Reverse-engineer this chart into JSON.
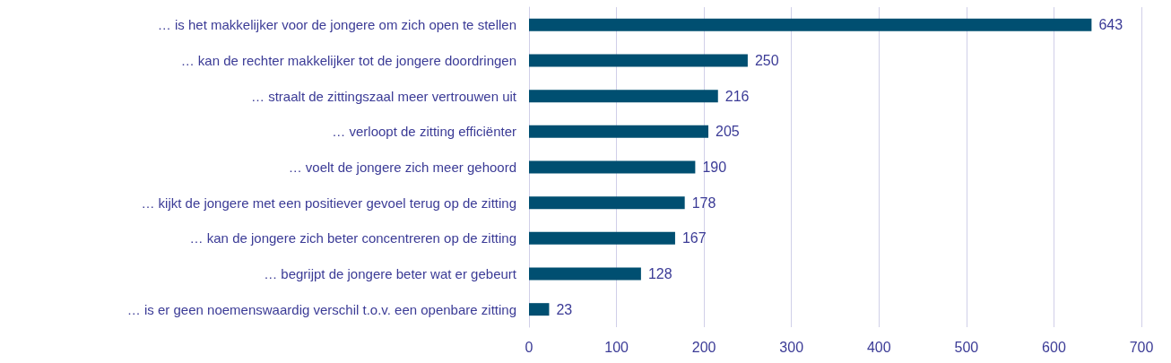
{
  "chart_data": {
    "type": "bar",
    "orientation": "horizontal",
    "categories": [
      "… is het makkelijker voor de jongere om zich open te stellen",
      "… kan de rechter makkelijker tot de jongere doordringen",
      "… straalt de zittingszaal meer vertrouwen uit",
      "… verloopt de zitting efficiënter",
      "… voelt de jongere zich meer gehoord",
      "… kijkt de jongere met een positiever gevoel terug op de zitting",
      "… kan de jongere zich beter concentreren op de zitting",
      "… begrijpt de jongere beter wat er gebeurt",
      "… is er geen noemenswaardig verschil t.o.v. een openbare zitting"
    ],
    "values": [
      643,
      250,
      216,
      205,
      190,
      178,
      167,
      128,
      23
    ],
    "color": "#004f71",
    "xlim": [
      0,
      700
    ],
    "xticks": [
      0,
      100,
      200,
      300,
      400,
      500,
      600,
      700
    ],
    "grid": "x",
    "data_labels": true
  }
}
